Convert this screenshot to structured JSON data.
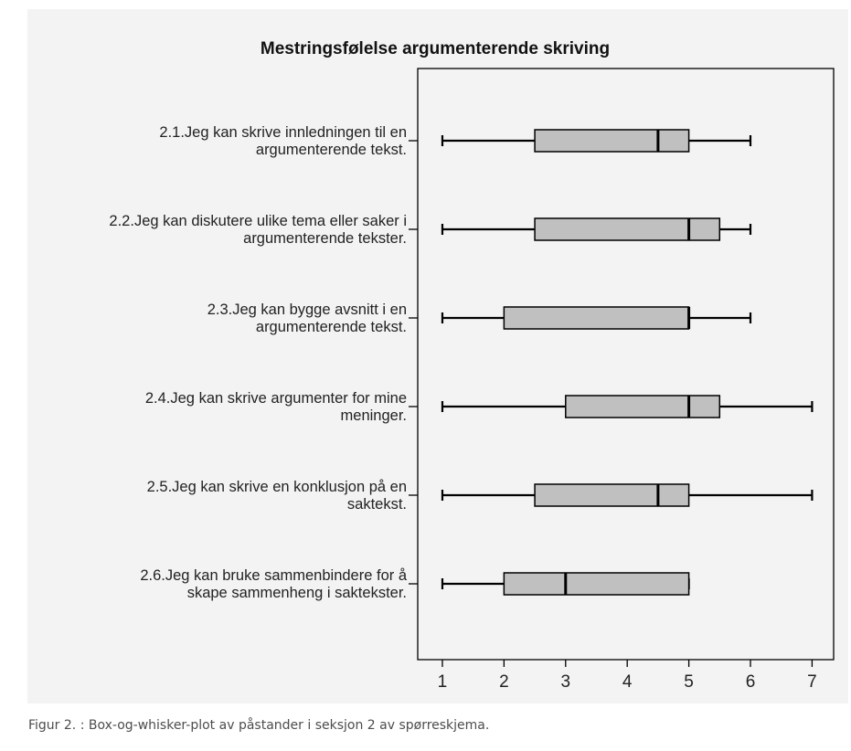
{
  "caption": "Figur 2. : Box-og-whisker-plot av påstander i seksjon 2 av spørreskjema.",
  "colors": {
    "panel": "#f3f3f3",
    "box_fill": "#c0c0c0",
    "stroke": "#000000",
    "text": "#222222"
  },
  "chart_data": {
    "type": "box",
    "orientation": "horizontal",
    "title": "Mestringsfølelse argumenterende skriving",
    "xlim": [
      0.6,
      7.35
    ],
    "xticks": [
      1,
      2,
      3,
      4,
      5,
      6,
      7
    ],
    "grid": false,
    "categories": [
      {
        "label_lines": [
          "2.1.Jeg kan skrive innledningen til en",
          "argumenterende tekst."
        ],
        "min": 1,
        "q1": 2.5,
        "median": 4.5,
        "q3": 5,
        "max": 6
      },
      {
        "label_lines": [
          "2.2.Jeg kan diskutere ulike tema eller saker i",
          "argumenterende tekster."
        ],
        "min": 1,
        "q1": 2.5,
        "median": 5,
        "q3": 5.5,
        "max": 6
      },
      {
        "label_lines": [
          "2.3.Jeg kan bygge avsnitt i en",
          "argumenterende tekst."
        ],
        "min": 1,
        "q1": 2,
        "median": 5,
        "q3": 5,
        "max": 6
      },
      {
        "label_lines": [
          "2.4.Jeg kan skrive argumenter for mine",
          "meninger."
        ],
        "min": 1,
        "q1": 3,
        "median": 5,
        "q3": 5.5,
        "max": 7
      },
      {
        "label_lines": [
          "2.5.Jeg kan skrive en konklusjon på en",
          "saktekst."
        ],
        "min": 1,
        "q1": 2.5,
        "median": 4.5,
        "q3": 5,
        "max": 7
      },
      {
        "label_lines": [
          "2.6.Jeg kan bruke sammenbindere for å",
          "skape sammenheng i saktekster."
        ],
        "min": 1,
        "q1": 2,
        "median": 3,
        "q3": 5,
        "max": 5
      }
    ]
  }
}
